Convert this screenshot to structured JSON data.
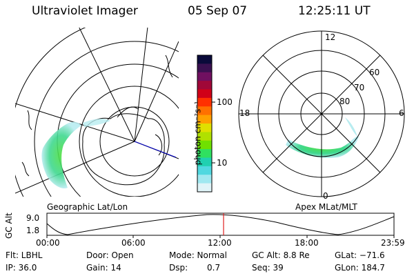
{
  "header": {
    "instrument": "Ultraviolet Imager",
    "date": "05 Sep 07",
    "time": "12:25:11 UT"
  },
  "colorbar": {
    "unit_label": "photon cm⁻²s⁻¹",
    "ticks": [
      "100",
      "10"
    ],
    "colors": [
      "#0a0a3a",
      "#3a1050",
      "#701060",
      "#a00838",
      "#d00018",
      "#ff3000",
      "#ff7000",
      "#ffa000",
      "#e0e000",
      "#b0e000",
      "#70e000",
      "#30e060",
      "#20d0b0",
      "#50d8e0",
      "#a0e8f0",
      "#e0f4f8"
    ]
  },
  "left_panel": {
    "label": "Geographic Lat/Lon"
  },
  "right_panel": {
    "label": "Apex MLat/MLT",
    "mlt_labels": [
      "12",
      "18",
      "6",
      "0"
    ],
    "lat_labels": [
      "60",
      "70",
      "80"
    ]
  },
  "altitude_plot": {
    "ylabel": "GC Alt",
    "yticks": [
      "9.0",
      "1.8"
    ],
    "xticks": [
      "00:00",
      "06:00",
      "12:00",
      "18:00",
      "23:59"
    ],
    "current_time_marker": "12:25"
  },
  "footer": {
    "filter": "Flt: LBHL",
    "ip": "IP: 36.0",
    "door": "Door: Open",
    "gain": "Gain: 14",
    "mode": "Mode: Normal",
    "dsp_label": "Dsp:",
    "dsp_value": "0.7",
    "gc_alt": "GC Alt: 8.8 Re",
    "seq": "Seq: 39",
    "glat": "GLat: −71.6",
    "glon": "GLon: 184.7"
  }
}
